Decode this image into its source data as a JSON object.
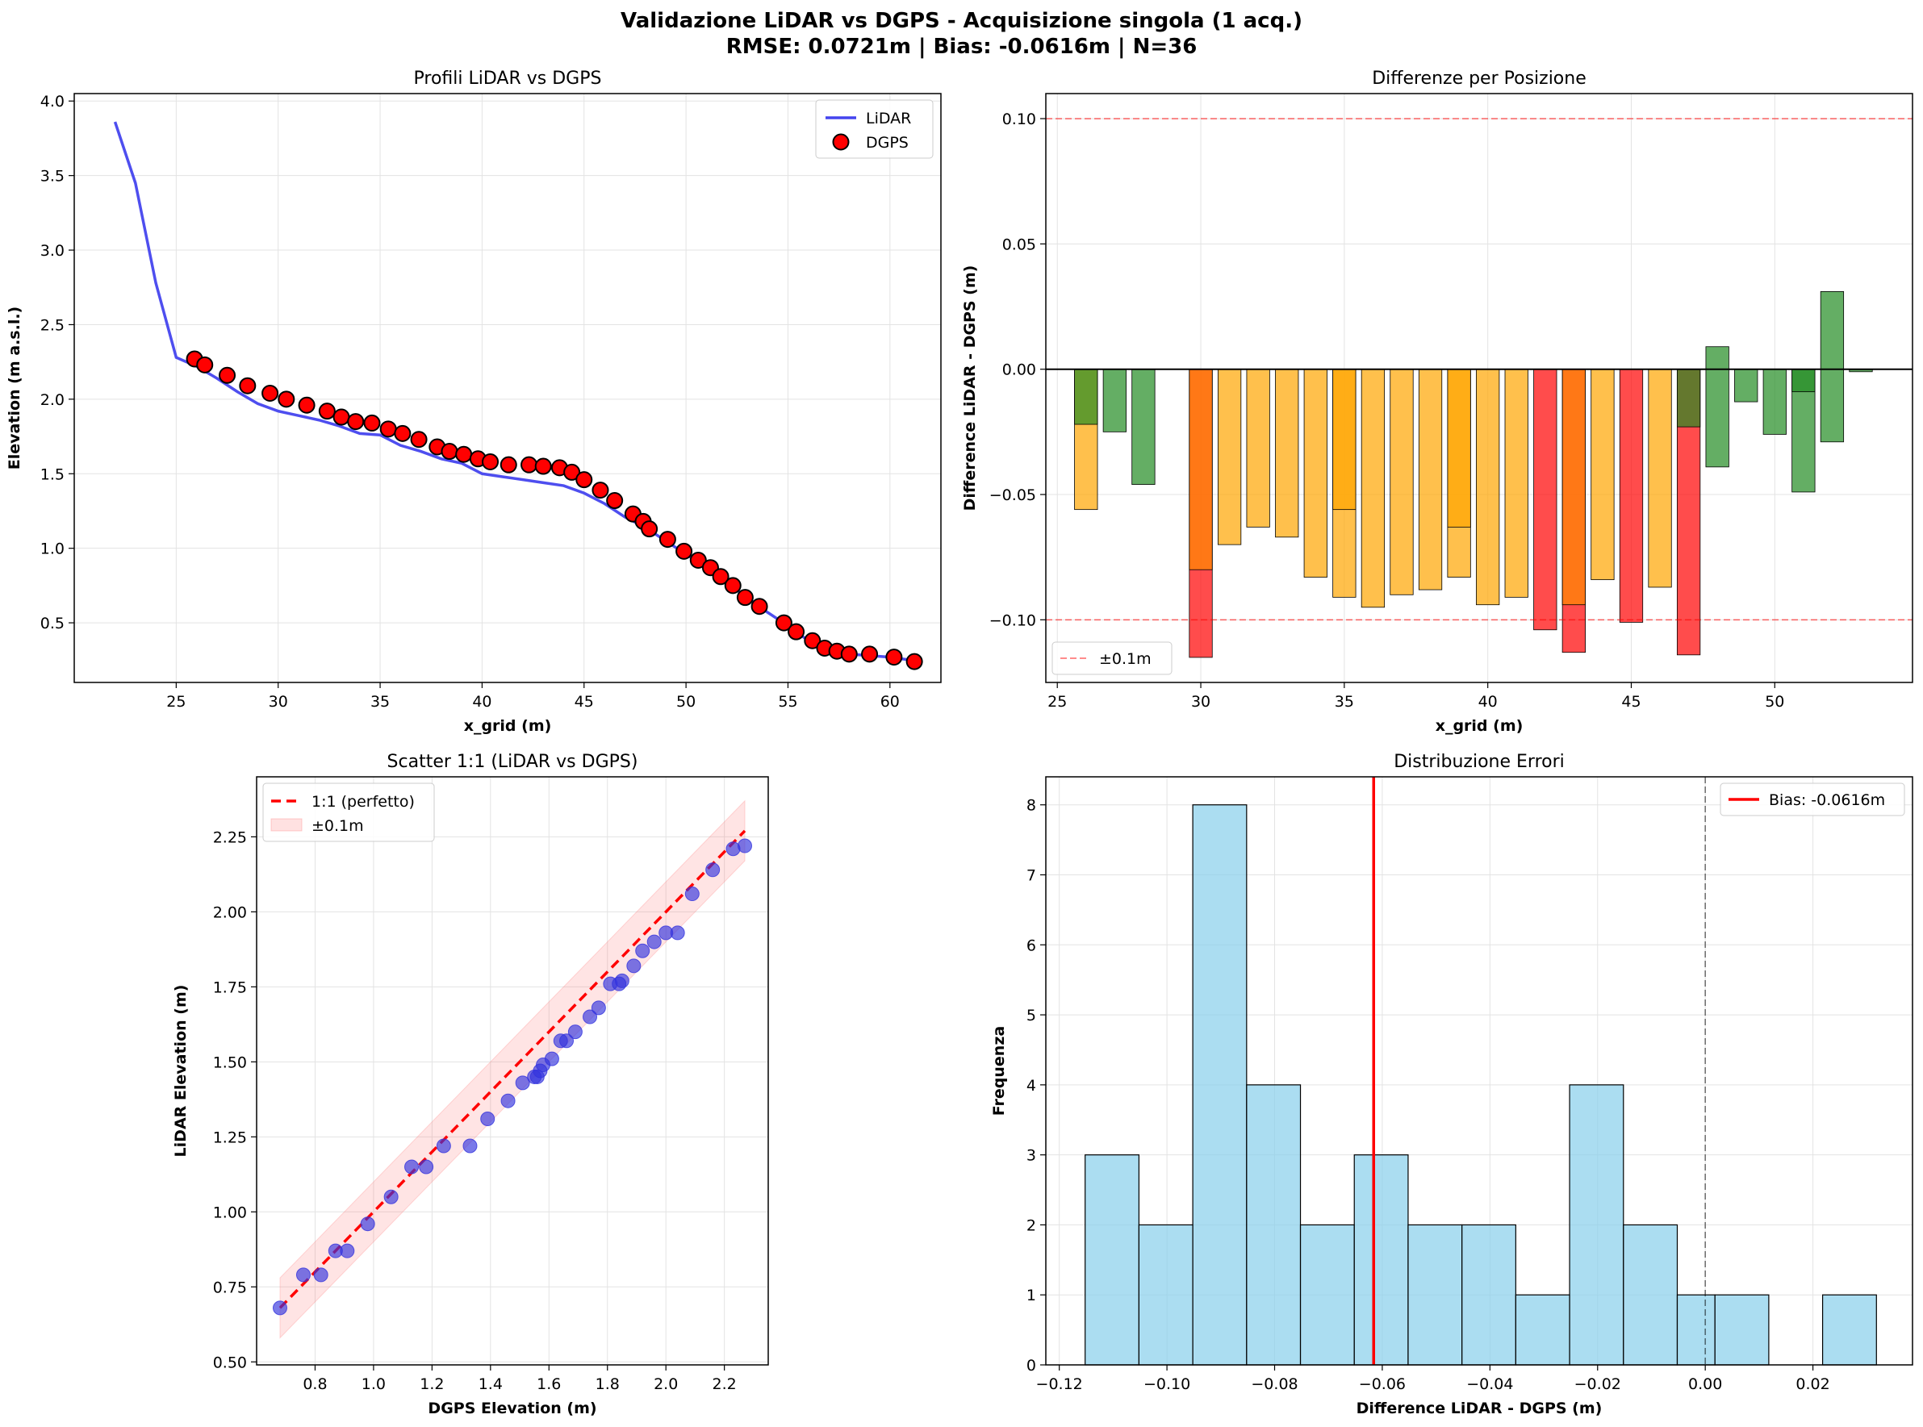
{
  "figure": {
    "title_line1": "Validazione LiDAR vs DGPS - Acquisizione singola (1 acq.)",
    "title_line2": "RMSE: 0.0721m | Bias: -0.0616m | N=36"
  },
  "chart_data": [
    {
      "id": "profiles",
      "type": "line",
      "title": "Profili LiDAR vs DGPS",
      "xlabel": "x_grid (m)",
      "ylabel": "Elevation (m a.s.l.)",
      "xlim": [
        20.0,
        62.5
      ],
      "ylim": [
        0.1,
        4.05
      ],
      "xticks": [
        25,
        30,
        35,
        40,
        45,
        50,
        55,
        60
      ],
      "yticks": [
        0.5,
        1.0,
        1.5,
        2.0,
        2.5,
        3.0,
        3.5,
        4.0
      ],
      "grid": true,
      "legend": "top-right",
      "series": [
        {
          "name": "LiDAR",
          "kind": "line",
          "color": "#4444ee",
          "x": [
            22,
            23,
            24,
            25,
            26,
            27,
            28,
            29,
            30,
            31,
            32,
            33,
            34,
            35,
            36,
            37,
            38,
            39,
            40,
            41,
            42,
            43,
            44,
            45,
            46,
            47,
            48,
            49,
            50,
            51,
            52,
            53,
            54,
            55,
            56,
            57,
            58,
            59,
            60,
            61
          ],
          "y": [
            3.86,
            3.45,
            2.78,
            2.28,
            2.22,
            2.14,
            2.05,
            1.97,
            1.92,
            1.89,
            1.86,
            1.82,
            1.77,
            1.76,
            1.69,
            1.65,
            1.6,
            1.57,
            1.5,
            1.48,
            1.46,
            1.44,
            1.42,
            1.37,
            1.3,
            1.21,
            1.14,
            1.05,
            0.96,
            0.87,
            0.77,
            0.67,
            0.57,
            0.48,
            0.38,
            0.33,
            0.29,
            0.28,
            0.27,
            0.25
          ]
        },
        {
          "name": "DGPS",
          "kind": "scatter",
          "color": "#ff0000",
          "x": [
            25.9,
            26.4,
            27.5,
            28.5,
            29.6,
            30.4,
            31.4,
            32.4,
            33.1,
            33.8,
            34.6,
            35.4,
            36.1,
            36.9,
            37.8,
            38.4,
            39.1,
            39.8,
            40.4,
            41.3,
            42.3,
            43.0,
            43.8,
            44.4,
            45.0,
            45.8,
            46.5,
            47.4,
            47.9,
            48.2,
            49.1,
            49.9,
            50.6,
            51.2,
            51.7,
            52.3,
            52.9,
            53.6,
            54.8,
            55.4,
            56.2,
            56.8,
            57.4,
            58.0,
            59.0,
            60.2,
            61.2
          ],
          "y": [
            2.27,
            2.23,
            2.16,
            2.09,
            2.04,
            2.0,
            1.96,
            1.92,
            1.88,
            1.85,
            1.84,
            1.8,
            1.77,
            1.73,
            1.68,
            1.65,
            1.63,
            1.6,
            1.58,
            1.56,
            1.56,
            1.55,
            1.54,
            1.51,
            1.46,
            1.39,
            1.32,
            1.23,
            1.18,
            1.13,
            1.06,
            0.98,
            0.92,
            0.87,
            0.81,
            0.75,
            0.67,
            0.61,
            0.5,
            0.44,
            0.38,
            0.33,
            0.31,
            0.29,
            0.29,
            0.27,
            0.24
          ]
        }
      ]
    },
    {
      "id": "differences",
      "type": "bar",
      "title": "Differenze per Posizione",
      "xlabel": "x_grid (m)",
      "ylabel": "Difference LiDAR - DGPS (m)",
      "xlim": [
        24.6,
        54.8
      ],
      "ylim": [
        -0.125,
        0.11
      ],
      "xticks": [
        25,
        30,
        35,
        40,
        45,
        50
      ],
      "yticks": [
        -0.1,
        -0.05,
        0.0,
        0.05,
        0.1
      ],
      "grid": true,
      "legend": "bottom-left",
      "threshold_label": "±0.1m",
      "threshold": 0.1,
      "colors": {
        "green": "#228b22",
        "orange": "#ffa500",
        "red": "#ff0000",
        "darkorange": "#ff8c00"
      },
      "bars": [
        {
          "x": 26,
          "values": [
            -0.056,
            -0.022
          ],
          "colors": [
            "orange",
            "green"
          ]
        },
        {
          "x": 27,
          "values": [
            -0.025
          ],
          "colors": [
            "green"
          ]
        },
        {
          "x": 28,
          "values": [
            -0.046
          ],
          "colors": [
            "green"
          ]
        },
        {
          "x": 30,
          "values": [
            -0.115,
            -0.08
          ],
          "colors": [
            "red",
            "darkorange"
          ]
        },
        {
          "x": 31,
          "values": [
            -0.07
          ],
          "colors": [
            "orange"
          ]
        },
        {
          "x": 32,
          "values": [
            -0.063
          ],
          "colors": [
            "orange"
          ]
        },
        {
          "x": 33,
          "values": [
            -0.067
          ],
          "colors": [
            "orange"
          ]
        },
        {
          "x": 34,
          "values": [
            -0.083
          ],
          "colors": [
            "orange"
          ]
        },
        {
          "x": 35,
          "values": [
            -0.091,
            -0.056
          ],
          "colors": [
            "orange",
            "orange"
          ]
        },
        {
          "x": 36,
          "values": [
            -0.095
          ],
          "colors": [
            "orange"
          ]
        },
        {
          "x": 37,
          "values": [
            -0.09
          ],
          "colors": [
            "orange"
          ]
        },
        {
          "x": 38,
          "values": [
            -0.088
          ],
          "colors": [
            "orange"
          ]
        },
        {
          "x": 39,
          "values": [
            -0.083,
            -0.063
          ],
          "colors": [
            "orange",
            "orange"
          ]
        },
        {
          "x": 40,
          "values": [
            -0.094
          ],
          "colors": [
            "orange"
          ]
        },
        {
          "x": 41,
          "values": [
            -0.091
          ],
          "colors": [
            "orange"
          ]
        },
        {
          "x": 42,
          "values": [
            -0.104
          ],
          "colors": [
            "red"
          ]
        },
        {
          "x": 43,
          "values": [
            -0.113,
            -0.094
          ],
          "colors": [
            "red",
            "darkorange"
          ]
        },
        {
          "x": 44,
          "values": [
            -0.084
          ],
          "colors": [
            "orange"
          ]
        },
        {
          "x": 45,
          "values": [
            -0.101
          ],
          "colors": [
            "red"
          ]
        },
        {
          "x": 46,
          "values": [
            -0.087
          ],
          "colors": [
            "orange"
          ]
        },
        {
          "x": 47,
          "values": [
            -0.114,
            -0.023
          ],
          "colors": [
            "red",
            "green"
          ]
        },
        {
          "x": 48,
          "values": [
            -0.039,
            0.009
          ],
          "colors": [
            "green",
            "green"
          ]
        },
        {
          "x": 49,
          "values": [
            -0.013
          ],
          "colors": [
            "green"
          ]
        },
        {
          "x": 50,
          "values": [
            -0.026
          ],
          "colors": [
            "green"
          ]
        },
        {
          "x": 51,
          "values": [
            -0.049,
            -0.009
          ],
          "colors": [
            "green",
            "green"
          ]
        },
        {
          "x": 52,
          "values": [
            -0.029,
            0.031
          ],
          "colors": [
            "green",
            "green"
          ]
        },
        {
          "x": 53,
          "values": [
            -0.001
          ],
          "colors": [
            "green"
          ]
        }
      ]
    },
    {
      "id": "scatter",
      "type": "scatter",
      "title": "Scatter 1:1 (LiDAR vs DGPS)",
      "xlabel": "DGPS Elevation (m)",
      "ylabel": "LiDAR Elevation (m)",
      "xlim": [
        0.6,
        2.35
      ],
      "ylim": [
        0.49,
        2.45
      ],
      "xticks": [
        0.8,
        1.0,
        1.2,
        1.4,
        1.6,
        1.8,
        2.0,
        2.2
      ],
      "yticks": [
        0.5,
        0.75,
        1.0,
        1.25,
        1.5,
        1.75,
        2.0,
        2.25
      ],
      "grid": true,
      "legend": "top-left",
      "line_label": "1:1 (perfetto)",
      "band_label": "±0.1m",
      "line_range": [
        0.68,
        2.27
      ],
      "band": 0.1,
      "x": [
        0.68,
        0.76,
        0.82,
        0.87,
        0.91,
        0.98,
        1.06,
        1.13,
        1.18,
        1.24,
        1.33,
        1.39,
        1.46,
        1.51,
        1.55,
        1.56,
        1.57,
        1.58,
        1.61,
        1.64,
        1.66,
        1.69,
        1.74,
        1.77,
        1.81,
        1.84,
        1.85,
        1.89,
        1.92,
        1.96,
        2.0,
        2.04,
        2.09,
        2.16,
        2.23,
        2.27
      ],
      "y": [
        0.68,
        0.79,
        0.79,
        0.87,
        0.87,
        0.96,
        1.05,
        1.15,
        1.15,
        1.22,
        1.22,
        1.31,
        1.37,
        1.43,
        1.45,
        1.45,
        1.47,
        1.49,
        1.51,
        1.57,
        1.57,
        1.6,
        1.65,
        1.68,
        1.76,
        1.76,
        1.77,
        1.82,
        1.87,
        1.9,
        1.93,
        1.93,
        2.06,
        2.14,
        2.21,
        2.22
      ]
    },
    {
      "id": "histogram",
      "type": "bar",
      "title": "Distribuzione Errori",
      "xlabel": "Difference LiDAR - DGPS (m)",
      "ylabel": "Frequenza",
      "xlim": [
        -0.1225,
        0.0385
      ],
      "ylim": [
        0,
        8.4
      ],
      "xticks": [
        -0.12,
        -0.1,
        -0.08,
        -0.06,
        -0.04,
        -0.02,
        0.0,
        0.02
      ],
      "yticks": [
        0,
        1,
        2,
        3,
        4,
        5,
        6,
        7,
        8
      ],
      "grid": true,
      "legend": "top-right",
      "bias": -0.0616,
      "bias_label": "Bias: -0.0616m",
      "bin_edges": [
        -0.1152,
        -0.1052,
        -0.0952,
        -0.0852,
        -0.0752,
        -0.0652,
        -0.0552,
        -0.0452,
        -0.0352,
        -0.0252,
        -0.0152,
        -0.0052,
        0.0018,
        0.0118,
        0.0218,
        0.0318
      ],
      "counts": [
        3,
        2,
        8,
        4,
        2,
        3,
        2,
        2,
        1,
        4,
        2,
        1,
        1,
        0,
        1
      ]
    }
  ]
}
